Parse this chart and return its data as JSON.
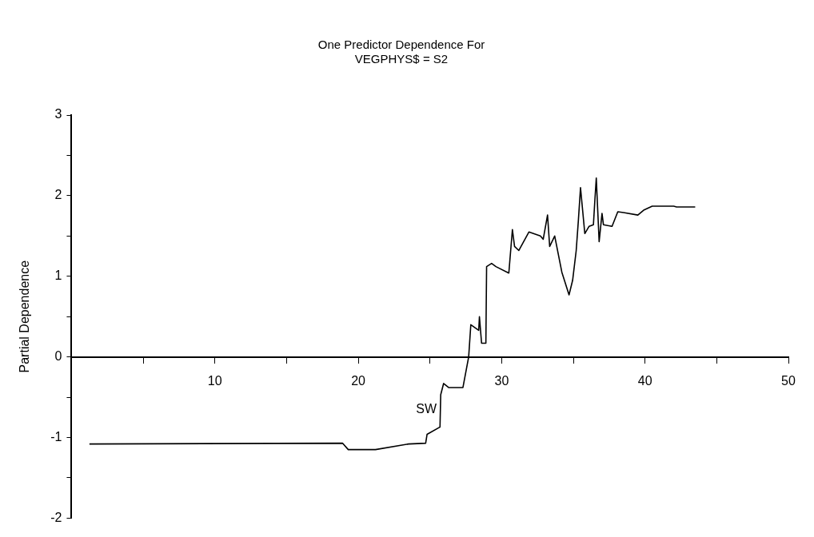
{
  "chart_data": {
    "type": "line",
    "title": "One Predictor Dependence For\nVEGPHYS$ = S2",
    "ylabel": "Partial Dependence",
    "x": [
      1.25,
      18.9,
      19.3,
      21.2,
      23.5,
      24.7,
      24.8,
      25.7,
      25.75,
      25.95,
      26.3,
      27.3,
      27.7,
      27.85,
      28.4,
      28.45,
      28.6,
      28.9,
      28.95,
      29.3,
      29.6,
      30.5,
      30.75,
      30.9,
      31.2,
      31.9,
      32.7,
      32.9,
      33.2,
      33.35,
      33.7,
      34.2,
      34.7,
      34.95,
      35.2,
      35.35,
      35.5,
      35.8,
      36.1,
      36.4,
      36.5,
      36.6,
      36.7,
      36.8,
      37.0,
      37.1,
      37.7,
      38.1,
      38.5,
      39.5,
      39.9,
      40.5,
      42,
      42.2,
      43.5
    ],
    "series": [
      {
        "color": "#000000",
        "values": [
          -1.08,
          -1.07,
          -1.15,
          -1.15,
          -1.08,
          -1.07,
          -0.96,
          -0.87,
          -0.47,
          -0.33,
          -0.38,
          -0.38,
          0,
          0.4,
          0.33,
          0.5,
          0.17,
          0.17,
          1.12,
          1.16,
          1.12,
          1.04,
          1.58,
          1.37,
          1.32,
          1.55,
          1.5,
          1.46,
          1.76,
          1.37,
          1.5,
          1.05,
          0.77,
          0.95,
          1.32,
          1.69,
          2.1,
          1.53,
          1.62,
          1.64,
          1.94,
          2.22,
          1.82,
          1.43,
          1.78,
          1.64,
          1.62,
          1.8,
          1.79,
          1.76,
          1.82,
          1.87,
          1.87,
          1.86,
          1.86
        ]
      }
    ],
    "annotations": [
      "SW"
    ],
    "xlim": [
      0,
      50
    ],
    "xticks": [
      {
        "value": 5,
        "label": null
      },
      10,
      {
        "value": 15,
        "label": null
      },
      20,
      {
        "value": 25,
        "label": null
      },
      30,
      {
        "value": 35,
        "label": null
      },
      40,
      {
        "value": 45,
        "label": null
      },
      50
    ],
    "ylim": [
      -2,
      3
    ],
    "yticks": [
      -2,
      {
        "value": -1.5,
        "label": null
      },
      -1,
      {
        "value": -0.5,
        "label": null
      },
      0,
      {
        "value": 0.5,
        "label": null
      },
      1,
      {
        "value": 1.5,
        "label": null
      },
      2,
      {
        "value": 2.5,
        "label": null
      },
      3
    ],
    "grid": false,
    "legend": false,
    "marker": "none",
    "line_style": "solid"
  }
}
